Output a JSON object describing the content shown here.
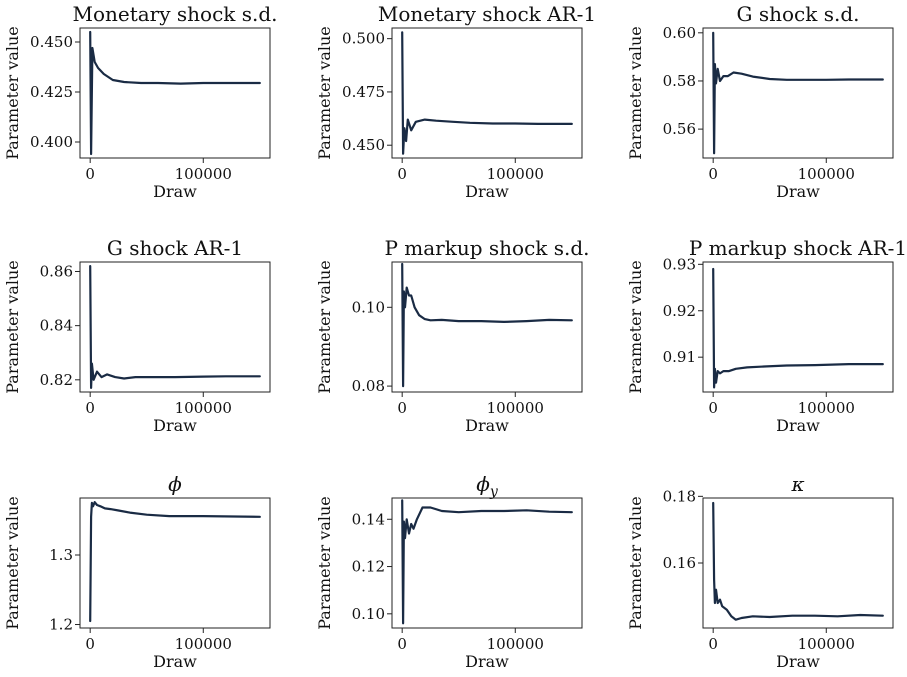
{
  "style": {
    "line_color": "#1a2b44"
  },
  "chart_data": [
    {
      "type": "line",
      "title": "Monetary shock s.d.",
      "xlabel": "Draw",
      "ylabel": "Parameter value",
      "xticks": [
        {
          "v": 0,
          "label": "0"
        },
        {
          "v": 100000,
          "label": "100000"
        }
      ],
      "yticks": [
        {
          "v": 0.4,
          "label": "0.400"
        },
        {
          "v": 0.425,
          "label": "0.425"
        },
        {
          "v": 0.45,
          "label": "0.450"
        }
      ],
      "xlim": [
        -9000,
        159000
      ],
      "ylim": [
        0.392,
        0.457
      ],
      "x": [
        0,
        800,
        2000,
        4000,
        7000,
        12000,
        20000,
        30000,
        45000,
        60000,
        80000,
        100000,
        120000,
        150000
      ],
      "y": [
        0.455,
        0.394,
        0.447,
        0.44,
        0.437,
        0.434,
        0.431,
        0.43,
        0.4295,
        0.4295,
        0.4292,
        0.4295,
        0.4295,
        0.4295
      ]
    },
    {
      "type": "line",
      "title": "Monetary shock AR-1",
      "xlabel": "Draw",
      "ylabel": "Parameter value",
      "xticks": [
        {
          "v": 0,
          "label": "0"
        },
        {
          "v": 100000,
          "label": "100000"
        }
      ],
      "yticks": [
        {
          "v": 0.45,
          "label": "0.450"
        },
        {
          "v": 0.475,
          "label": "0.475"
        },
        {
          "v": 0.5,
          "label": "0.500"
        }
      ],
      "xlim": [
        -9000,
        159000
      ],
      "ylim": [
        0.444,
        0.505
      ],
      "x": [
        0,
        800,
        2000,
        3500,
        5000,
        8000,
        12000,
        20000,
        30000,
        45000,
        60000,
        80000,
        100000,
        120000,
        150000
      ],
      "y": [
        0.503,
        0.446,
        0.458,
        0.452,
        0.462,
        0.457,
        0.461,
        0.462,
        0.4615,
        0.461,
        0.4605,
        0.4602,
        0.4602,
        0.46,
        0.46
      ]
    },
    {
      "type": "line",
      "title": "G shock s.d.",
      "xlabel": "Draw",
      "ylabel": "Parameter value",
      "xticks": [
        {
          "v": 0,
          "label": "0"
        },
        {
          "v": 100000,
          "label": "100000"
        }
      ],
      "yticks": [
        {
          "v": 0.56,
          "label": "0.56"
        },
        {
          "v": 0.58,
          "label": "0.58"
        },
        {
          "v": 0.6,
          "label": "0.60"
        }
      ],
      "xlim": [
        -9000,
        159000
      ],
      "ylim": [
        0.548,
        0.602
      ],
      "x": [
        0,
        800,
        1500,
        2500,
        4000,
        6000,
        9000,
        13000,
        18000,
        25000,
        35000,
        50000,
        65000,
        80000,
        100000,
        120000,
        150000
      ],
      "y": [
        0.6,
        0.55,
        0.587,
        0.579,
        0.585,
        0.58,
        0.582,
        0.582,
        0.5835,
        0.583,
        0.5818,
        0.5808,
        0.5805,
        0.5805,
        0.5805,
        0.5806,
        0.5806
      ]
    },
    {
      "type": "line",
      "title": "G shock AR-1",
      "xlabel": "Draw",
      "ylabel": "Parameter value",
      "xticks": [
        {
          "v": 0,
          "label": "0"
        },
        {
          "v": 100000,
          "label": "100000"
        }
      ],
      "yticks": [
        {
          "v": 0.82,
          "label": "0.82"
        },
        {
          "v": 0.84,
          "label": "0.84"
        },
        {
          "v": 0.86,
          "label": "0.86"
        }
      ],
      "xlim": [
        -9000,
        159000
      ],
      "ylim": [
        0.8155,
        0.8635
      ],
      "x": [
        0,
        800,
        1500,
        3000,
        6000,
        10000,
        15000,
        22000,
        30000,
        40000,
        55000,
        75000,
        100000,
        120000,
        150000
      ],
      "y": [
        0.862,
        0.817,
        0.826,
        0.82,
        0.823,
        0.821,
        0.822,
        0.821,
        0.8205,
        0.821,
        0.821,
        0.821,
        0.8212,
        0.8213,
        0.8213
      ]
    },
    {
      "type": "line",
      "title": "P markup shock s.d.",
      "xlabel": "Draw",
      "ylabel": "Parameter value",
      "xticks": [
        {
          "v": 0,
          "label": "0"
        },
        {
          "v": 100000,
          "label": "100000"
        }
      ],
      "yticks": [
        {
          "v": 0.08,
          "label": "0.08"
        },
        {
          "v": 0.1,
          "label": "0.10"
        }
      ],
      "xlim": [
        -9000,
        159000
      ],
      "ylim": [
        0.0785,
        0.1115
      ],
      "x": [
        0,
        800,
        1500,
        2500,
        4000,
        6000,
        8000,
        11000,
        15000,
        20000,
        25000,
        35000,
        50000,
        70000,
        90000,
        110000,
        130000,
        150000
      ],
      "y": [
        0.111,
        0.08,
        0.104,
        0.1,
        0.105,
        0.103,
        0.103,
        0.1,
        0.098,
        0.097,
        0.0967,
        0.0968,
        0.0965,
        0.0965,
        0.0963,
        0.0965,
        0.0968,
        0.0967
      ]
    },
    {
      "type": "line",
      "title": "P markup shock AR-1",
      "xlabel": "Draw",
      "ylabel": "Parameter value",
      "xticks": [
        {
          "v": 0,
          "label": "0"
        },
        {
          "v": 100000,
          "label": "100000"
        }
      ],
      "yticks": [
        {
          "v": 0.91,
          "label": "0.91"
        },
        {
          "v": 0.92,
          "label": "0.92"
        },
        {
          "v": 0.93,
          "label": "0.93"
        }
      ],
      "xlim": [
        -9000,
        159000
      ],
      "ylim": [
        0.9025,
        0.9305
      ],
      "x": [
        0,
        800,
        1500,
        2500,
        4000,
        6000,
        9000,
        14000,
        20000,
        30000,
        45000,
        65000,
        90000,
        120000,
        150000
      ],
      "y": [
        0.929,
        0.9035,
        0.9075,
        0.9045,
        0.907,
        0.9065,
        0.907,
        0.907,
        0.9075,
        0.9078,
        0.908,
        0.9082,
        0.9083,
        0.9085,
        0.9085
      ]
    },
    {
      "type": "line",
      "title": "ϕ",
      "title_sub": "",
      "xlabel": "Draw",
      "ylabel": "Parameter value",
      "xticks": [
        {
          "v": 0,
          "label": "0"
        },
        {
          "v": 100000,
          "label": "100000"
        }
      ],
      "yticks": [
        {
          "v": 1.2,
          "label": "1.2"
        },
        {
          "v": 1.3,
          "label": "1.3"
        }
      ],
      "xlim": [
        -9000,
        159000
      ],
      "ylim": [
        1.195,
        1.382
      ],
      "x": [
        0,
        800,
        1500,
        2500,
        4000,
        6000,
        9000,
        13000,
        18000,
        25000,
        35000,
        50000,
        70000,
        100000,
        150000
      ],
      "y": [
        1.205,
        1.355,
        1.375,
        1.37,
        1.376,
        1.372,
        1.37,
        1.367,
        1.366,
        1.364,
        1.361,
        1.358,
        1.356,
        1.356,
        1.355
      ]
    },
    {
      "type": "line",
      "title": "ϕ",
      "title_sub": "y",
      "xlabel": "Draw",
      "ylabel": "Parameter value",
      "xticks": [
        {
          "v": 0,
          "label": "0"
        },
        {
          "v": 100000,
          "label": "100000"
        }
      ],
      "yticks": [
        {
          "v": 0.1,
          "label": "0.10"
        },
        {
          "v": 0.12,
          "label": "0.12"
        },
        {
          "v": 0.14,
          "label": "0.14"
        }
      ],
      "xlim": [
        -9000,
        159000
      ],
      "ylim": [
        0.094,
        0.149
      ],
      "x": [
        0,
        800,
        1500,
        2500,
        4000,
        6000,
        8000,
        10000,
        13000,
        18000,
        25000,
        35000,
        50000,
        70000,
        90000,
        110000,
        130000,
        150000
      ],
      "y": [
        0.148,
        0.096,
        0.139,
        0.132,
        0.14,
        0.134,
        0.138,
        0.136,
        0.14,
        0.145,
        0.145,
        0.1435,
        0.143,
        0.1435,
        0.1435,
        0.1438,
        0.1432,
        0.143
      ]
    },
    {
      "type": "line",
      "title": "κ",
      "title_sub": "",
      "xlabel": "Draw",
      "ylabel": "Parameter value",
      "xticks": [
        {
          "v": 0,
          "label": "0"
        },
        {
          "v": 100000,
          "label": "100000"
        }
      ],
      "yticks": [
        {
          "v": 0.16,
          "label": "0.16"
        },
        {
          "v": 0.18,
          "label": "0.18"
        }
      ],
      "xlim": [
        -9000,
        159000
      ],
      "ylim": [
        0.1405,
        0.1795
      ],
      "x": [
        0,
        800,
        1500,
        2500,
        4000,
        6000,
        8000,
        12000,
        16000,
        20000,
        25000,
        35000,
        50000,
        70000,
        90000,
        110000,
        130000,
        150000
      ],
      "y": [
        0.178,
        0.155,
        0.148,
        0.152,
        0.148,
        0.149,
        0.147,
        0.146,
        0.144,
        0.143,
        0.1435,
        0.144,
        0.1438,
        0.1442,
        0.1442,
        0.144,
        0.1444,
        0.1442
      ]
    }
  ]
}
